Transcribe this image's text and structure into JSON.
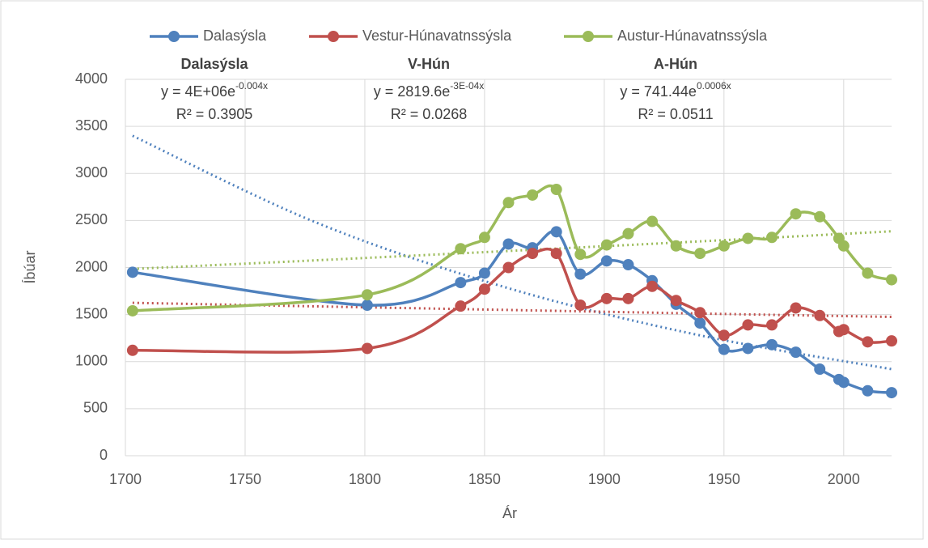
{
  "chart_data": {
    "type": "line",
    "x": [
      1703,
      1801,
      1840,
      1850,
      1860,
      1870,
      1880,
      1890,
      1901,
      1910,
      1920,
      1930,
      1940,
      1950,
      1960,
      1970,
      1980,
      1990,
      1998,
      2000,
      2010,
      2020
    ],
    "series": [
      {
        "name": "Dalasýsla",
        "color": "#4f81bd",
        "values": [
          1950,
          1600,
          1840,
          1940,
          2250,
          2210,
          2380,
          1930,
          2070,
          2030,
          1860,
          1610,
          1410,
          1130,
          1140,
          1180,
          1100,
          920,
          810,
          780,
          690,
          670
        ]
      },
      {
        "name": "Vestur-Húnavatnssýsla",
        "color": "#c0504d",
        "values": [
          1120,
          1140,
          1590,
          1770,
          2000,
          2150,
          2150,
          1600,
          1670,
          1670,
          1800,
          1650,
          1520,
          1280,
          1390,
          1390,
          1570,
          1490,
          1320,
          1340,
          1210,
          1220
        ]
      },
      {
        "name": "Austur-Húnavatnssýsla",
        "color": "#9bbb59",
        "values": [
          1540,
          1710,
          2200,
          2320,
          2690,
          2770,
          2830,
          2140,
          2240,
          2360,
          2490,
          2230,
          2150,
          2230,
          2310,
          2320,
          2570,
          2540,
          2310,
          2230,
          1940,
          1870
        ]
      }
    ],
    "trendlines": [
      {
        "x": [
          1703,
          1780,
          1860,
          1940,
          2020
        ],
        "values": [
          3400,
          2475,
          1780,
          1279,
          920
        ]
      },
      {
        "x": [
          1703,
          1780,
          1860,
          1940,
          2020
        ],
        "values": [
          1625,
          1587,
          1549,
          1511,
          1475
        ]
      },
      {
        "x": [
          1703,
          1780,
          1860,
          1940,
          2020
        ],
        "values": [
          1985,
          2077,
          2176,
          2278,
          2385
        ]
      }
    ],
    "annotations": [
      {
        "title": "Dalasýsla",
        "equation": "y = 4E+06e",
        "exponent": "-0.004x",
        "r2": "R² = 0.3905"
      },
      {
        "title": "V-Hún",
        "equation": "y = 2819.6e",
        "exponent": "-3E-04x",
        "r2": "R² = 0.0268"
      },
      {
        "title": "A-Hún",
        "equation": "y = 741.44e",
        "exponent": "0.0006x",
        "r2": "R² = 0.0511"
      }
    ],
    "xlabel": "Ár",
    "ylabel": "Íbúar",
    "xlim": [
      1700,
      2020
    ],
    "xticks": [
      1700,
      1750,
      1800,
      1850,
      1900,
      1950,
      2000
    ],
    "ylim": [
      0,
      4000
    ],
    "yticks": [
      0,
      500,
      1000,
      1500,
      2000,
      2500,
      3000,
      3500,
      4000
    ],
    "grid": true,
    "legend": "top"
  }
}
